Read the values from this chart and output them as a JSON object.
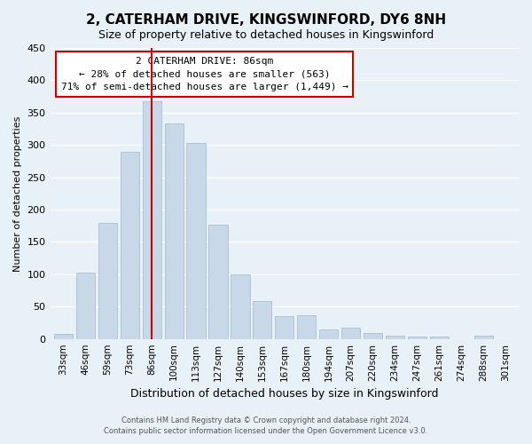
{
  "title": "2, CATERHAM DRIVE, KINGSWINFORD, DY6 8NH",
  "subtitle": "Size of property relative to detached houses in Kingswinford",
  "xlabel": "Distribution of detached houses by size in Kingswinford",
  "ylabel": "Number of detached properties",
  "categories": [
    "33sqm",
    "46sqm",
    "59sqm",
    "73sqm",
    "86sqm",
    "100sqm",
    "113sqm",
    "127sqm",
    "140sqm",
    "153sqm",
    "167sqm",
    "180sqm",
    "194sqm",
    "207sqm",
    "220sqm",
    "234sqm",
    "247sqm",
    "261sqm",
    "274sqm",
    "288sqm",
    "301sqm"
  ],
  "values": [
    8,
    103,
    180,
    289,
    367,
    333,
    303,
    177,
    100,
    58,
    35,
    36,
    15,
    18,
    9,
    5,
    3,
    3,
    0,
    5,
    0
  ],
  "bar_color": "#c8d8e8",
  "bar_edge_color": "#a0b8cc",
  "marker_index": 4,
  "marker_color": "#cc0000",
  "ylim": [
    0,
    450
  ],
  "yticks": [
    0,
    50,
    100,
    150,
    200,
    250,
    300,
    350,
    400,
    450
  ],
  "annotation_title": "2 CATERHAM DRIVE: 86sqm",
  "annotation_line1": "← 28% of detached houses are smaller (563)",
  "annotation_line2": "71% of semi-detached houses are larger (1,449) →",
  "annotation_box_color": "#ffffff",
  "annotation_box_edge": "#cc0000",
  "footer_line1": "Contains HM Land Registry data © Crown copyright and database right 2024.",
  "footer_line2": "Contains public sector information licensed under the Open Government Licence v3.0.",
  "background_color": "#e8f0f8",
  "plot_bg_color": "#e8f0f8",
  "grid_color": "#ffffff"
}
